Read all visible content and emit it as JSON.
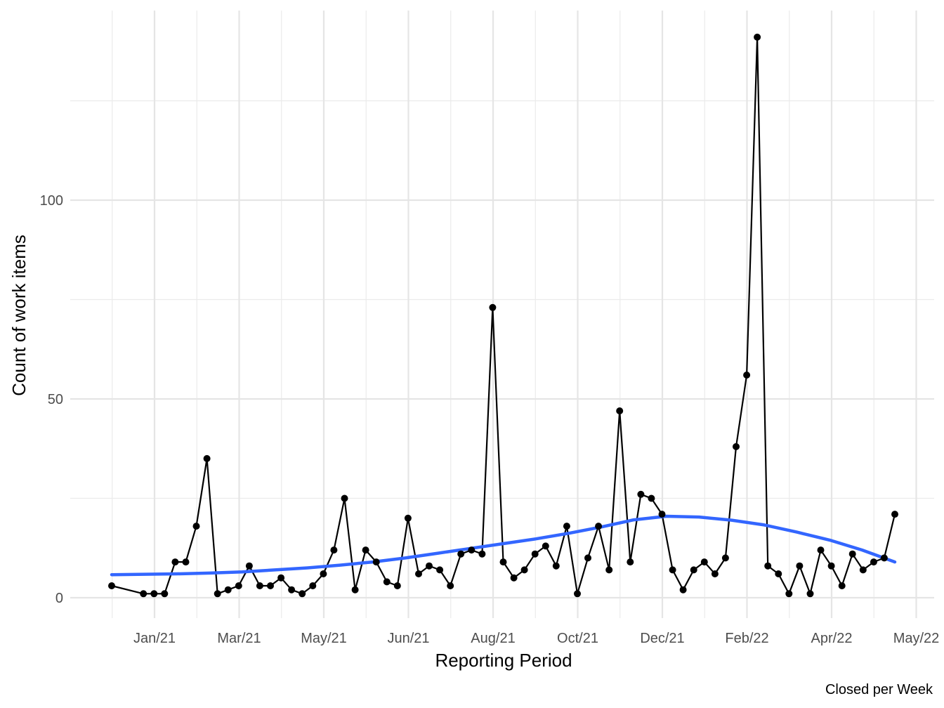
{
  "chart_data": {
    "type": "line",
    "title": "",
    "xlabel": "Reporting Period",
    "ylabel": "Count of work items",
    "caption": "Closed per Week",
    "grid": true,
    "legend": "none",
    "x_axis": {
      "ticks": [
        "Jan/21",
        "Mar/21",
        "May/21",
        "Jun/21",
        "Aug/21",
        "Oct/21",
        "Dec/21",
        "Feb/22",
        "Apr/22",
        "May/22"
      ]
    },
    "y_axis": {
      "ticks": [
        0,
        50,
        100
      ],
      "range": [
        -5,
        140
      ]
    },
    "series": [
      {
        "role": "observed",
        "color": "#000000",
        "values": [
          3,
          1,
          1,
          1,
          9,
          9,
          18,
          35,
          1,
          2,
          3,
          8,
          3,
          3,
          5,
          2,
          1,
          3,
          6,
          12,
          25,
          2,
          12,
          9,
          4,
          3,
          20,
          6,
          8,
          7,
          3,
          11,
          12,
          11,
          73,
          9,
          5,
          7,
          11,
          13,
          8,
          18,
          1,
          10,
          18,
          7,
          47,
          9,
          26,
          25,
          21,
          7,
          2,
          7,
          9,
          6,
          10,
          38,
          56,
          141,
          8,
          6,
          1,
          8,
          1,
          12,
          8,
          3,
          11,
          7,
          9,
          10,
          21
        ]
      },
      {
        "role": "smoothed-trend",
        "color": "#3366ff",
        "values": [
          5.8,
          5.9,
          6.0,
          6.2,
          6.5,
          7.0,
          7.5,
          8.2,
          9.0,
          10.0,
          11.2,
          12.4,
          13.6,
          14.8,
          16.2,
          17.8,
          19.6,
          20.5,
          20.3,
          19.5,
          18.3,
          16.5,
          14.5,
          12.0,
          9.0
        ]
      }
    ]
  }
}
